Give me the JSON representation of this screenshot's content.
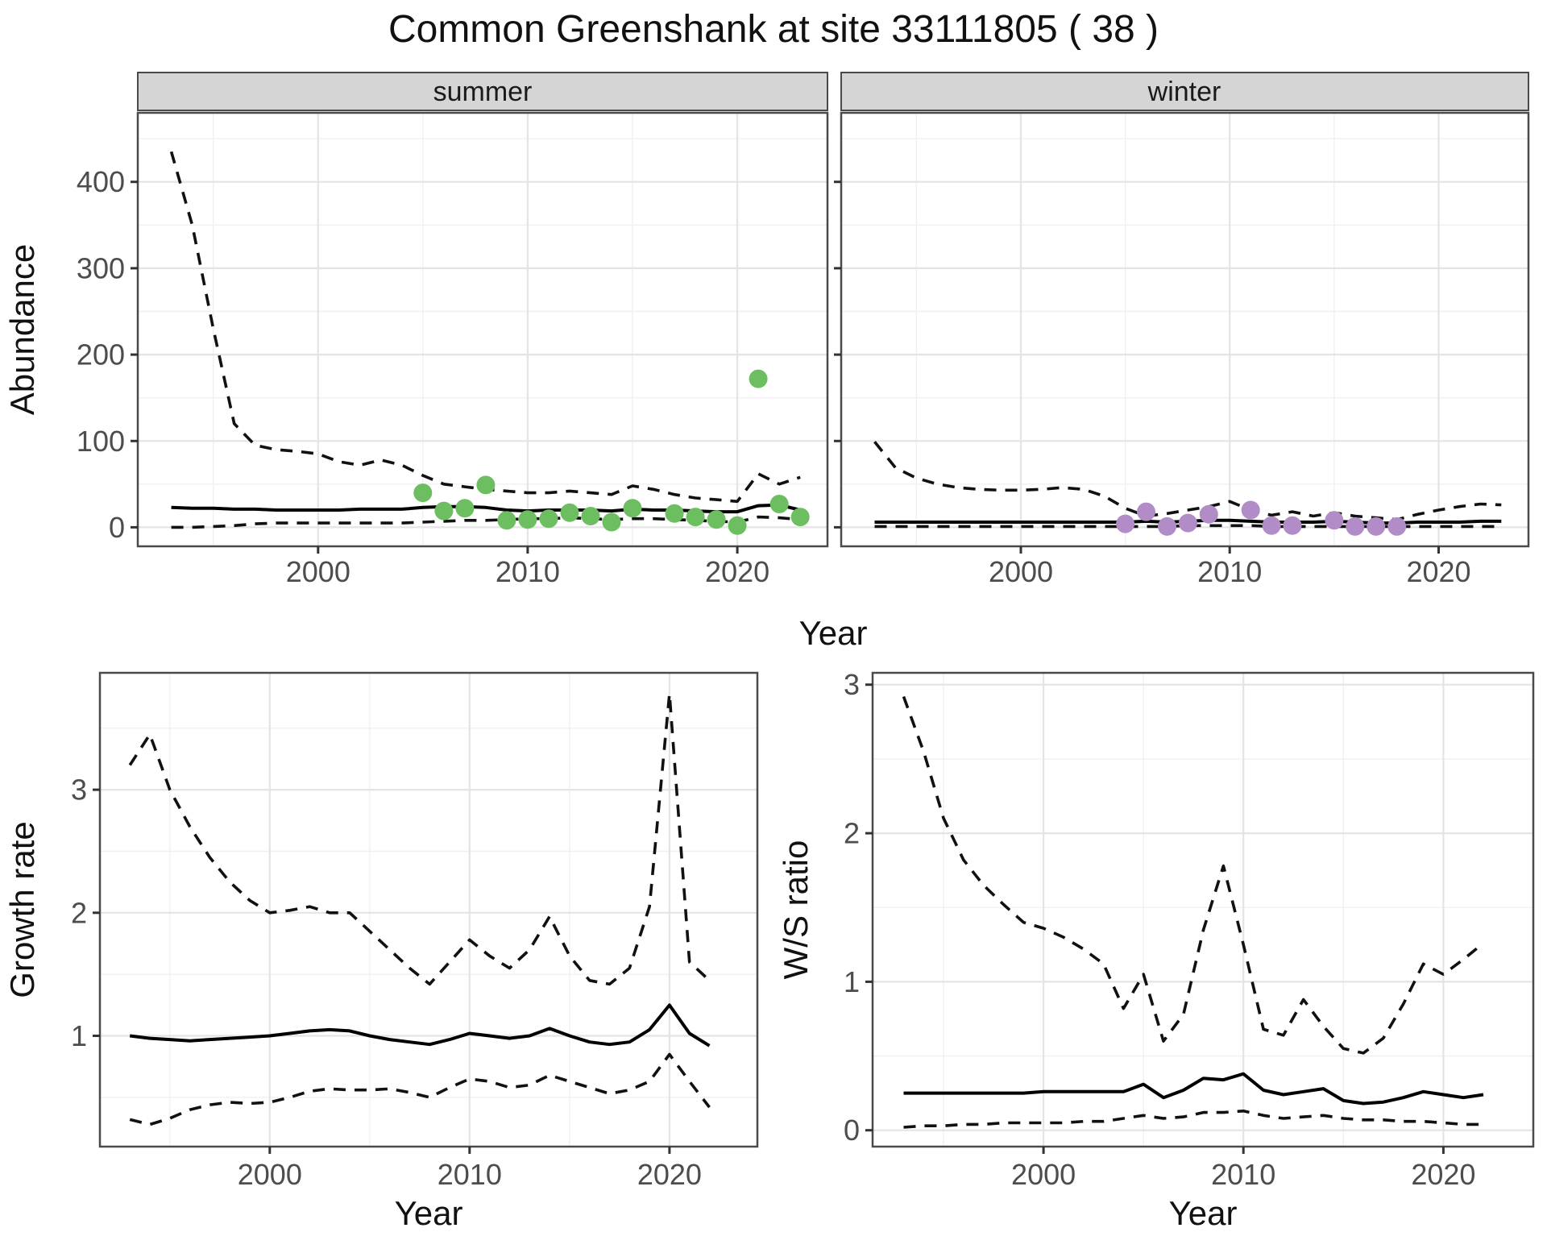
{
  "title": "Common Greenshank at site 33111805 ( 38 )",
  "facets": [
    "summer",
    "winter"
  ],
  "colors": {
    "summer_point": "#6cbe60",
    "winter_point": "#b28cc6",
    "line": "#000000",
    "grid_major": "#e4e4e4",
    "grid_minor": "#f0f0f0",
    "strip_fill": "#d5d5d5",
    "panel_border": "#4a4a4a",
    "axis_text": "#4d4d4d",
    "title_text": "#111111"
  },
  "chart_data": [
    {
      "type": "line",
      "facet": "summer",
      "xlabel": "Year",
      "ylabel": "Abundance",
      "xlim": [
        1991.4,
        2024.3
      ],
      "ylim": [
        -22,
        480
      ],
      "x_ticks": [
        2000,
        2010,
        2020
      ],
      "x_minor": [
        1995,
        2005,
        2015
      ],
      "y_ticks": [
        0,
        100,
        200,
        300,
        400
      ],
      "y_minor": [
        50,
        150,
        250,
        350,
        450
      ],
      "grid": true,
      "legend": "none",
      "x": [
        1993,
        1994,
        1995,
        1996,
        1997,
        1998,
        1999,
        2000,
        2001,
        2002,
        2003,
        2004,
        2005,
        2006,
        2007,
        2008,
        2009,
        2010,
        2011,
        2012,
        2013,
        2014,
        2015,
        2016,
        2017,
        2018,
        2019,
        2020,
        2021,
        2022,
        2023
      ],
      "series": [
        {
          "name": "upper-ci",
          "style": "dashed",
          "values": [
            435,
            350,
            230,
            120,
            95,
            90,
            88,
            85,
            76,
            72,
            78,
            72,
            60,
            50,
            47,
            44,
            42,
            40,
            40,
            42,
            40,
            38,
            48,
            44,
            38,
            34,
            32,
            30,
            62,
            50,
            58
          ]
        },
        {
          "name": "median",
          "style": "solid",
          "values": [
            23,
            22,
            22,
            21,
            21,
            20,
            20,
            20,
            20,
            21,
            21,
            21,
            23,
            24,
            24,
            23,
            20,
            19,
            20,
            20,
            20,
            19,
            21,
            20,
            20,
            19,
            18,
            18,
            25,
            26,
            20
          ]
        },
        {
          "name": "lower-ci",
          "style": "dashed",
          "values": [
            0,
            0,
            1,
            2,
            4,
            5,
            5,
            5,
            5,
            5,
            5,
            5,
            6,
            7,
            8,
            8,
            9,
            10,
            10,
            11,
            10,
            9,
            10,
            10,
            9,
            8,
            7,
            6,
            12,
            11,
            9
          ]
        }
      ],
      "points": {
        "name": "observed-counts-summer",
        "color": "#6cbe60",
        "x": [
          2005,
          2006,
          2007,
          2008,
          2009,
          2010,
          2011,
          2012,
          2013,
          2014,
          2015,
          2017,
          2018,
          2019,
          2020,
          2021,
          2022,
          2023
        ],
        "y": [
          40,
          19,
          22,
          49,
          8,
          9,
          10,
          17,
          13,
          6,
          22,
          16,
          12,
          9,
          2,
          172,
          27,
          12
        ]
      }
    },
    {
      "type": "line",
      "facet": "winter",
      "xlabel": "Year",
      "ylabel": "Abundance",
      "xlim": [
        1991.4,
        2024.3
      ],
      "ylim": [
        -22,
        480
      ],
      "x_ticks": [
        2000,
        2010,
        2020
      ],
      "x_minor": [
        1995,
        2005,
        2015
      ],
      "y_ticks": [
        0,
        100,
        200,
        300,
        400
      ],
      "y_minor": [
        50,
        150,
        250,
        350,
        450
      ],
      "grid": true,
      "legend": "none",
      "x": [
        1993,
        1994,
        1995,
        1996,
        1997,
        1998,
        1999,
        2000,
        2001,
        2002,
        2003,
        2004,
        2005,
        2006,
        2007,
        2008,
        2009,
        2010,
        2011,
        2012,
        2013,
        2014,
        2015,
        2016,
        2017,
        2018,
        2019,
        2020,
        2021,
        2022,
        2023
      ],
      "series": [
        {
          "name": "upper-ci",
          "style": "dashed",
          "values": [
            99,
            69,
            57,
            50,
            46,
            44,
            43,
            43,
            44,
            46,
            44,
            36,
            22,
            13,
            16,
            20,
            24,
            30,
            20,
            14,
            18,
            13,
            17,
            13,
            11,
            9,
            15,
            20,
            24,
            27,
            26
          ]
        },
        {
          "name": "median",
          "style": "solid",
          "values": [
            6,
            6,
            6,
            6,
            6,
            6,
            6,
            6,
            6,
            6,
            6,
            6,
            6,
            7,
            6,
            7,
            8,
            8,
            7,
            6,
            6,
            6,
            7,
            6,
            5,
            5,
            6,
            6,
            6,
            7,
            7
          ]
        },
        {
          "name": "lower-ci",
          "style": "dashed",
          "values": [
            1,
            1,
            1,
            1,
            1,
            1,
            1,
            1,
            1,
            1,
            1,
            1,
            1,
            1,
            1,
            2,
            2,
            2,
            2,
            1,
            1,
            1,
            1,
            1,
            1,
            1,
            1,
            1,
            1,
            1,
            1
          ]
        }
      ],
      "points": {
        "name": "observed-counts-winter",
        "color": "#b28cc6",
        "x": [
          2005,
          2006,
          2007,
          2008,
          2009,
          2011,
          2012,
          2013,
          2015,
          2016,
          2017,
          2018
        ],
        "y": [
          4,
          18,
          1,
          5,
          15,
          20,
          2,
          2,
          8,
          1,
          1,
          1
        ]
      }
    },
    {
      "type": "line",
      "facet": null,
      "xlabel": "Year",
      "ylabel": "Growth rate",
      "xlim": [
        1991.5,
        2024.4
      ],
      "ylim": [
        0.1,
        3.95
      ],
      "x_ticks": [
        2000,
        2010,
        2020
      ],
      "x_minor": [
        1995,
        2005,
        2015
      ],
      "y_ticks": [
        1,
        2,
        3
      ],
      "y_minor": [
        0.5,
        1.5,
        2.5,
        3.5
      ],
      "grid": true,
      "legend": "none",
      "x": [
        1993,
        1994,
        1995,
        1996,
        1997,
        1998,
        1999,
        2000,
        2001,
        2002,
        2003,
        2004,
        2005,
        2006,
        2007,
        2008,
        2009,
        2010,
        2011,
        2012,
        2013,
        2014,
        2015,
        2016,
        2017,
        2018,
        2019,
        2020,
        2021,
        2022
      ],
      "series": [
        {
          "name": "upper-ci",
          "style": "dashed",
          "values": [
            3.2,
            3.45,
            3.0,
            2.7,
            2.45,
            2.25,
            2.1,
            2.0,
            2.02,
            2.05,
            2.0,
            2.0,
            1.85,
            1.7,
            1.55,
            1.42,
            1.6,
            1.78,
            1.65,
            1.55,
            1.7,
            1.97,
            1.65,
            1.45,
            1.42,
            1.55,
            2.05,
            3.78,
            1.6,
            1.45
          ]
        },
        {
          "name": "median",
          "style": "solid",
          "values": [
            1.0,
            0.98,
            0.97,
            0.96,
            0.97,
            0.98,
            0.99,
            1.0,
            1.02,
            1.04,
            1.05,
            1.04,
            1.0,
            0.97,
            0.95,
            0.93,
            0.97,
            1.02,
            1.0,
            0.98,
            1.0,
            1.06,
            1.0,
            0.95,
            0.93,
            0.95,
            1.05,
            1.25,
            1.02,
            0.92
          ]
        },
        {
          "name": "lower-ci",
          "style": "dashed",
          "values": [
            0.32,
            0.28,
            0.33,
            0.4,
            0.44,
            0.46,
            0.45,
            0.46,
            0.5,
            0.55,
            0.57,
            0.56,
            0.56,
            0.57,
            0.54,
            0.5,
            0.58,
            0.65,
            0.63,
            0.58,
            0.6,
            0.68,
            0.63,
            0.58,
            0.53,
            0.56,
            0.63,
            0.85,
            0.63,
            0.42
          ]
        }
      ],
      "points": null
    },
    {
      "type": "line",
      "facet": null,
      "xlabel": "Year",
      "ylabel": "W/S ratio",
      "xlim": [
        1991.45,
        2024.5
      ],
      "ylim": [
        -0.11,
        3.08
      ],
      "x_ticks": [
        2000,
        2010,
        2020
      ],
      "x_minor": [
        1995,
        2005,
        2015
      ],
      "y_ticks": [
        0,
        1,
        2,
        3
      ],
      "y_minor": [
        0.5,
        1.5,
        2.5
      ],
      "grid": true,
      "legend": "none",
      "x": [
        1993,
        1994,
        1995,
        1996,
        1997,
        1998,
        1999,
        2000,
        2001,
        2002,
        2003,
        2004,
        2005,
        2006,
        2007,
        2008,
        2009,
        2010,
        2011,
        2012,
        2013,
        2014,
        2015,
        2016,
        2017,
        2018,
        2019,
        2020,
        2021,
        2022
      ],
      "series": [
        {
          "name": "upper-ci",
          "style": "dashed",
          "values": [
            2.92,
            2.55,
            2.1,
            1.82,
            1.65,
            1.52,
            1.4,
            1.36,
            1.3,
            1.22,
            1.12,
            0.82,
            1.05,
            0.6,
            0.78,
            1.35,
            1.78,
            1.25,
            0.68,
            0.64,
            0.88,
            0.7,
            0.55,
            0.52,
            0.62,
            0.85,
            1.12,
            1.05,
            1.15,
            1.26
          ]
        },
        {
          "name": "median",
          "style": "solid",
          "values": [
            0.25,
            0.25,
            0.25,
            0.25,
            0.25,
            0.25,
            0.25,
            0.26,
            0.26,
            0.26,
            0.26,
            0.26,
            0.31,
            0.22,
            0.27,
            0.35,
            0.34,
            0.38,
            0.27,
            0.24,
            0.26,
            0.28,
            0.2,
            0.18,
            0.19,
            0.22,
            0.26,
            0.24,
            0.22,
            0.24
          ]
        },
        {
          "name": "lower-ci",
          "style": "dashed",
          "values": [
            0.02,
            0.03,
            0.03,
            0.04,
            0.04,
            0.05,
            0.05,
            0.05,
            0.05,
            0.06,
            0.06,
            0.08,
            0.1,
            0.08,
            0.09,
            0.12,
            0.12,
            0.13,
            0.1,
            0.08,
            0.09,
            0.1,
            0.08,
            0.07,
            0.07,
            0.06,
            0.06,
            0.05,
            0.04,
            0.04
          ]
        }
      ],
      "points": null
    }
  ]
}
